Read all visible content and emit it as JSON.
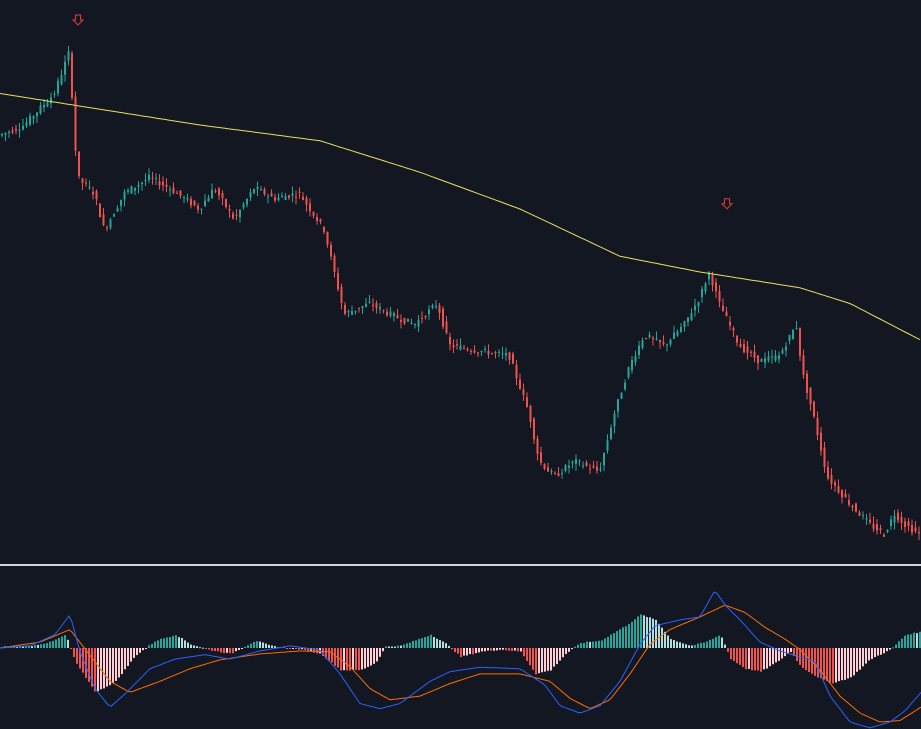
{
  "colors": {
    "background": "#131722",
    "up": "#26a69a",
    "down": "#ef5350",
    "ma": "#e6e15a",
    "macd": "#2962ff",
    "signal": "#ff6d00",
    "hist_up_strong": "#26a69a",
    "hist_up_weak": "#b2dfdb",
    "hist_down_strong": "#ef5350",
    "hist_down_weak": "#ffcdd2",
    "signal_arrow": "#e53935",
    "divider": "#d1d4dc"
  },
  "chart_data": [
    {
      "type": "candlestick",
      "panel": "price",
      "title": "",
      "ylim": [
        0,
        100
      ],
      "grid": false,
      "anchors": [
        [
          0,
          78
        ],
        [
          25,
          80
        ],
        [
          55,
          86
        ],
        [
          70,
          94
        ],
        [
          78,
          70
        ],
        [
          95,
          67
        ],
        [
          105,
          60
        ],
        [
          125,
          67
        ],
        [
          150,
          70
        ],
        [
          170,
          68
        ],
        [
          200,
          64
        ],
        [
          215,
          68
        ],
        [
          235,
          62
        ],
        [
          255,
          68
        ],
        [
          275,
          66
        ],
        [
          300,
          67
        ],
        [
          325,
          60
        ],
        [
          345,
          44
        ],
        [
          370,
          46
        ],
        [
          390,
          44
        ],
        [
          415,
          42
        ],
        [
          438,
          46
        ],
        [
          450,
          38
        ],
        [
          480,
          37
        ],
        [
          510,
          36
        ],
        [
          530,
          25
        ],
        [
          540,
          16
        ],
        [
          555,
          13
        ],
        [
          575,
          16
        ],
        [
          600,
          14
        ],
        [
          615,
          25
        ],
        [
          630,
          34
        ],
        [
          645,
          40
        ],
        [
          665,
          38
        ],
        [
          685,
          42
        ],
        [
          700,
          47
        ],
        [
          710,
          52
        ],
        [
          720,
          46
        ],
        [
          740,
          38
        ],
        [
          760,
          35
        ],
        [
          780,
          36
        ],
        [
          797,
          42
        ],
        [
          803,
          33
        ],
        [
          815,
          24
        ],
        [
          828,
          13
        ],
        [
          850,
          8
        ],
        [
          870,
          4
        ],
        [
          885,
          2
        ],
        [
          895,
          6
        ],
        [
          905,
          4
        ],
        [
          920,
          2
        ]
      ],
      "moving_average": {
        "values": [
          [
            0,
            86
          ],
          [
            100,
            83
          ],
          [
            200,
            80
          ],
          [
            320,
            77
          ],
          [
            420,
            71
          ],
          [
            520,
            64
          ],
          [
            620,
            55
          ],
          [
            700,
            52
          ],
          [
            800,
            49
          ],
          [
            850,
            46
          ],
          [
            921,
            39
          ]
        ]
      },
      "signals": [
        {
          "x": 78,
          "y": 100,
          "direction": "down"
        },
        {
          "x": 727,
          "y": 65,
          "direction": "down"
        }
      ]
    },
    {
      "type": "macd",
      "panel": "oscillator",
      "title": "",
      "ylim": [
        -100,
        100
      ],
      "grid": false,
      "macd_line": [
        [
          0,
          0
        ],
        [
          30,
          3
        ],
        [
          55,
          18
        ],
        [
          70,
          45
        ],
        [
          80,
          -5
        ],
        [
          95,
          -55
        ],
        [
          110,
          -80
        ],
        [
          125,
          -62
        ],
        [
          150,
          -28
        ],
        [
          175,
          -15
        ],
        [
          205,
          -9
        ],
        [
          230,
          -15
        ],
        [
          260,
          -4
        ],
        [
          290,
          3
        ],
        [
          320,
          -3
        ],
        [
          340,
          -35
        ],
        [
          360,
          -75
        ],
        [
          380,
          -82
        ],
        [
          400,
          -75
        ],
        [
          430,
          -45
        ],
        [
          450,
          -32
        ],
        [
          480,
          -26
        ],
        [
          520,
          -28
        ],
        [
          545,
          -50
        ],
        [
          560,
          -78
        ],
        [
          580,
          -88
        ],
        [
          600,
          -78
        ],
        [
          620,
          -45
        ],
        [
          640,
          5
        ],
        [
          655,
          30
        ],
        [
          680,
          38
        ],
        [
          700,
          42
        ],
        [
          715,
          78
        ],
        [
          725,
          58
        ],
        [
          740,
          38
        ],
        [
          760,
          8
        ],
        [
          780,
          -4
        ],
        [
          800,
          -12
        ],
        [
          815,
          -18
        ],
        [
          830,
          -65
        ],
        [
          850,
          -100
        ],
        [
          870,
          -108
        ],
        [
          890,
          -100
        ],
        [
          905,
          -85
        ],
        [
          921,
          -60
        ]
      ],
      "signal_line": [
        [
          0,
          0
        ],
        [
          40,
          8
        ],
        [
          70,
          25
        ],
        [
          90,
          -10
        ],
        [
          110,
          -45
        ],
        [
          130,
          -60
        ],
        [
          160,
          -45
        ],
        [
          190,
          -28
        ],
        [
          220,
          -16
        ],
        [
          260,
          -8
        ],
        [
          300,
          -4
        ],
        [
          330,
          -5
        ],
        [
          350,
          -25
        ],
        [
          370,
          -55
        ],
        [
          390,
          -70
        ],
        [
          420,
          -65
        ],
        [
          450,
          -48
        ],
        [
          480,
          -35
        ],
        [
          520,
          -35
        ],
        [
          550,
          -45
        ],
        [
          570,
          -68
        ],
        [
          590,
          -82
        ],
        [
          610,
          -70
        ],
        [
          630,
          -35
        ],
        [
          650,
          5
        ],
        [
          670,
          25
        ],
        [
          700,
          42
        ],
        [
          725,
          58
        ],
        [
          745,
          48
        ],
        [
          765,
          28
        ],
        [
          785,
          12
        ],
        [
          800,
          -2
        ],
        [
          820,
          -30
        ],
        [
          840,
          -65
        ],
        [
          860,
          -88
        ],
        [
          880,
          -100
        ],
        [
          900,
          -98
        ],
        [
          921,
          -80
        ]
      ],
      "histogram": [
        [
          0,
          2
        ],
        [
          30,
          3
        ],
        [
          50,
          8
        ],
        [
          65,
          18
        ],
        [
          75,
          -20
        ],
        [
          95,
          -60
        ],
        [
          115,
          -45
        ],
        [
          135,
          -10
        ],
        [
          155,
          10
        ],
        [
          175,
          18
        ],
        [
          190,
          5
        ],
        [
          210,
          -3
        ],
        [
          230,
          -8
        ],
        [
          255,
          10
        ],
        [
          270,
          3
        ],
        [
          300,
          -2
        ],
        [
          320,
          -8
        ],
        [
          340,
          -30
        ],
        [
          360,
          -30
        ],
        [
          375,
          -20
        ],
        [
          385,
          2
        ],
        [
          400,
          3
        ],
        [
          430,
          18
        ],
        [
          445,
          6
        ],
        [
          460,
          -12
        ],
        [
          480,
          -5
        ],
        [
          500,
          -2
        ],
        [
          520,
          -5
        ],
        [
          535,
          -35
        ],
        [
          550,
          -30
        ],
        [
          565,
          -8
        ],
        [
          580,
          7
        ],
        [
          600,
          10
        ],
        [
          625,
          30
        ],
        [
          640,
          45
        ],
        [
          655,
          38
        ],
        [
          670,
          12
        ],
        [
          690,
          3
        ],
        [
          705,
          8
        ],
        [
          720,
          18
        ],
        [
          730,
          -15
        ],
        [
          745,
          -28
        ],
        [
          760,
          -32
        ],
        [
          775,
          -20
        ],
        [
          790,
          -5
        ],
        [
          800,
          -25
        ],
        [
          815,
          -38
        ],
        [
          830,
          -48
        ],
        [
          850,
          -40
        ],
        [
          870,
          -15
        ],
        [
          890,
          -2
        ],
        [
          905,
          18
        ],
        [
          921,
          22
        ]
      ]
    }
  ]
}
